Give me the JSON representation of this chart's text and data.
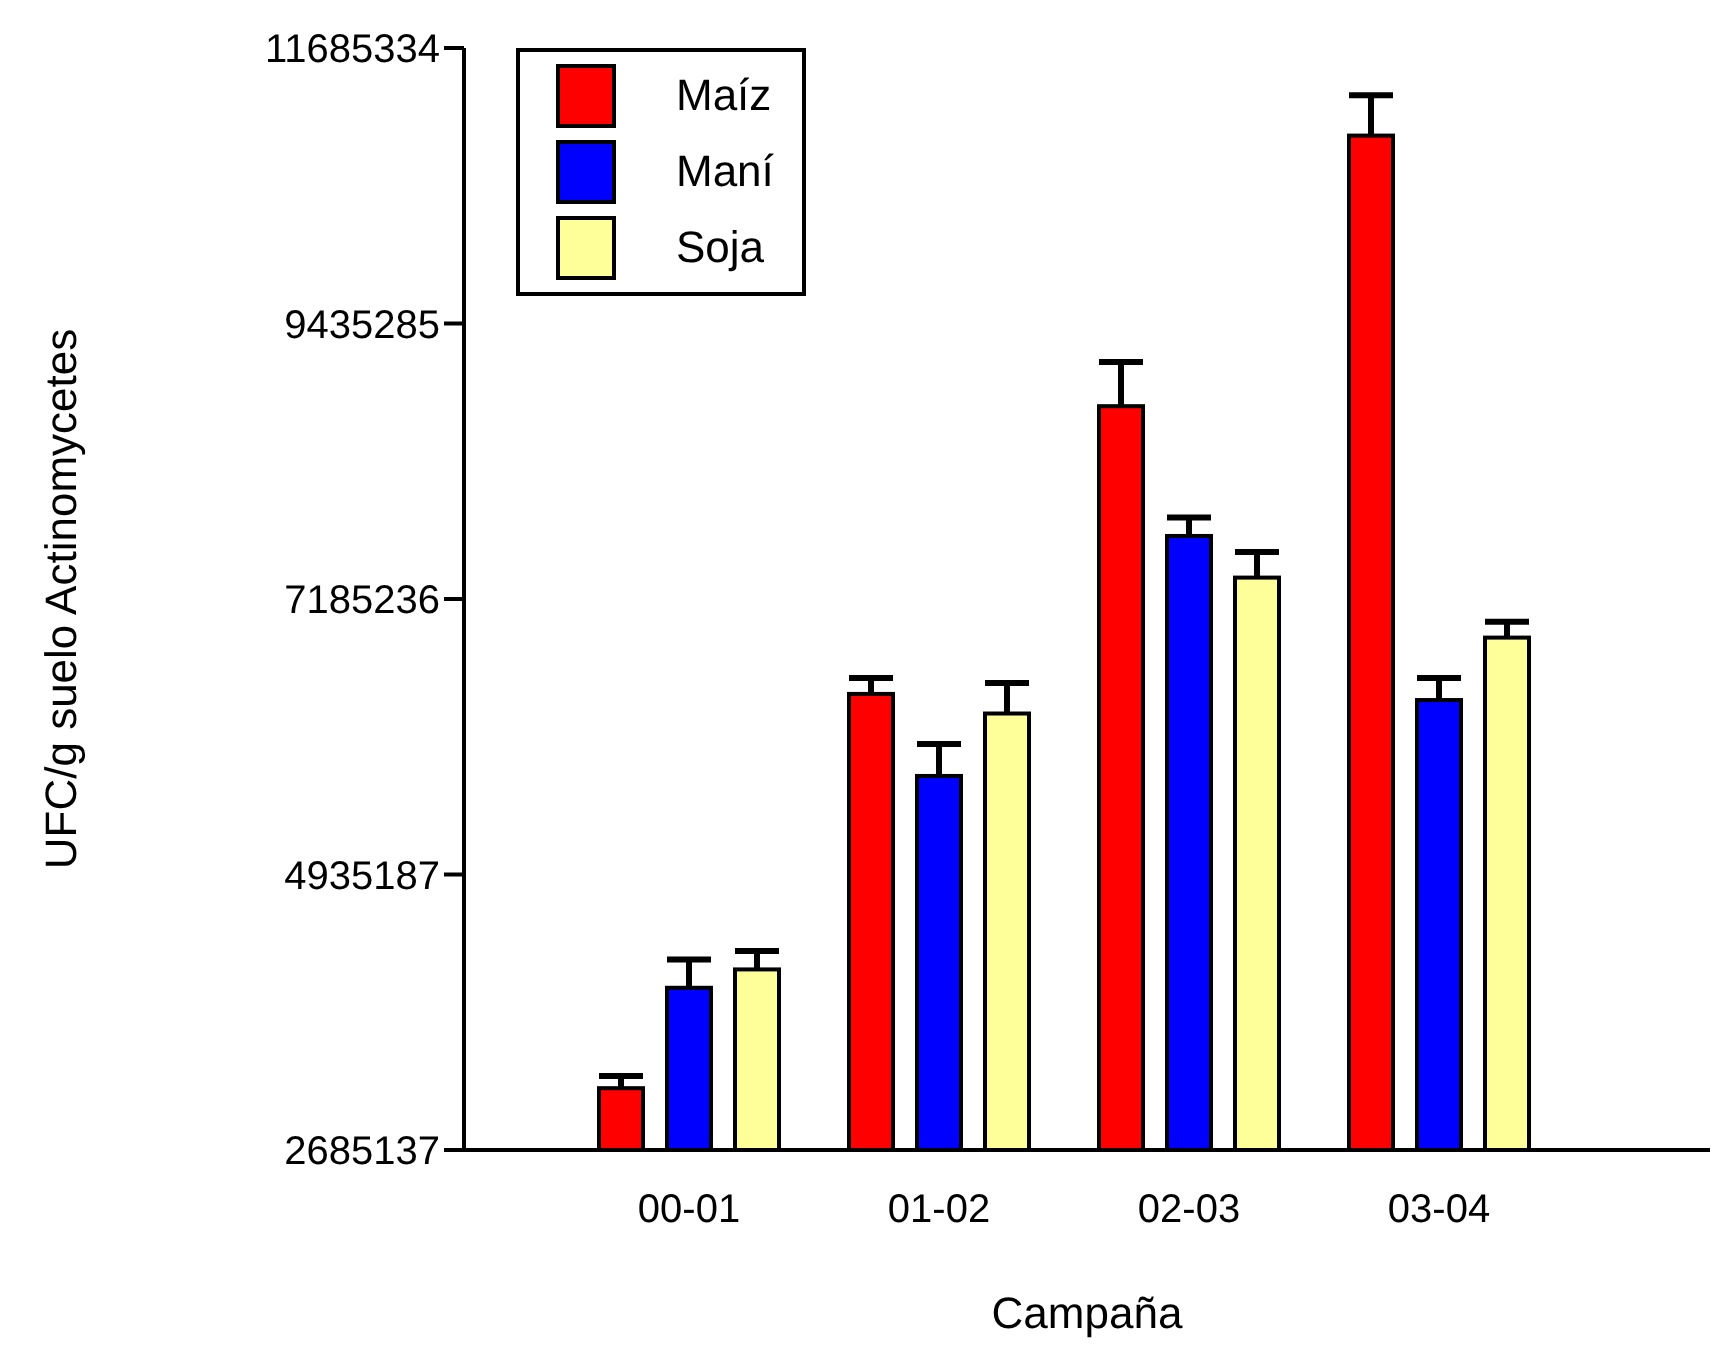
{
  "chart_data": {
    "type": "bar",
    "xlabel": "Campaña",
    "ylabel": "UFC/g suelo Actinomycetes",
    "categories": [
      "00-01",
      "01-02",
      "02-03",
      "03-04"
    ],
    "series": [
      {
        "name": "Maíz",
        "color": "#ff0000",
        "values": [
          3190000,
          6410000,
          8760000,
          10970000
        ],
        "errors": [
          100000,
          130000,
          360000,
          330000
        ]
      },
      {
        "name": "Maní",
        "color": "#0000ff",
        "values": [
          4010000,
          5740000,
          7700000,
          6360000
        ],
        "errors": [
          230000,
          260000,
          150000,
          180000
        ]
      },
      {
        "name": "Soja",
        "color": "#ffff99",
        "values": [
          4160000,
          6250000,
          7360000,
          6870000
        ],
        "errors": [
          150000,
          250000,
          210000,
          130000
        ]
      }
    ],
    "ylim": [
      2685137,
      11685334
    ],
    "yticks": [
      2685137,
      4935187,
      7185236,
      9435285,
      11685334
    ],
    "grid": false,
    "legend": "top left"
  }
}
